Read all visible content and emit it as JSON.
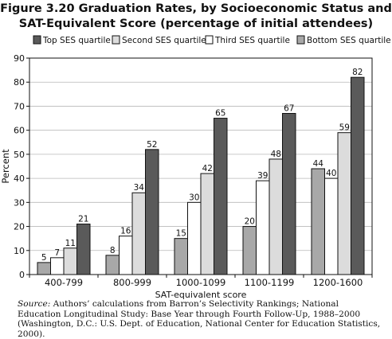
{
  "chart_data": {
    "type": "bar",
    "title_line1": "Figure 3.20 Graduation Rates, by Socioeconomic Status and",
    "title_line2": "SAT-Equivalent Score (percentage of initial attendees)",
    "xlabel": "SAT-equivalent score",
    "ylabel": "Percent",
    "ylim": [
      0,
      90
    ],
    "yticks": [
      0,
      10,
      20,
      30,
      40,
      50,
      60,
      70,
      80,
      90
    ],
    "grid": true,
    "legend_placement": "top",
    "categories": [
      "400-799",
      "800-999",
      "1000-1099",
      "1100-1199",
      "1200-1600"
    ],
    "series": [
      {
        "name": "Bottom SES quartile",
        "color": "#a8a8a8",
        "values": [
          5,
          8,
          15,
          20,
          44
        ]
      },
      {
        "name": "Third SES quartile",
        "color": "#ffffff",
        "values": [
          7,
          16,
          30,
          39,
          40
        ]
      },
      {
        "name": "Second SES quartile",
        "color": "#dcdcdc",
        "values": [
          11,
          34,
          42,
          48,
          59
        ]
      },
      {
        "name": "Top SES quartile",
        "color": "#5a5a5a",
        "values": [
          21,
          52,
          65,
          67,
          82
        ]
      }
    ],
    "legend_order": [
      3,
      2,
      1,
      0
    ]
  },
  "source": {
    "label": "Source:",
    "text": " Authors’ calculations from Barron’s Selectivity Rankings; National Education Longitudinal Study: Base Year through Fourth Follow-Up, 1988–2000 (Washington, D.C.: U.S. Dept. of Education, National Center for Education Statistics, 2000)."
  }
}
